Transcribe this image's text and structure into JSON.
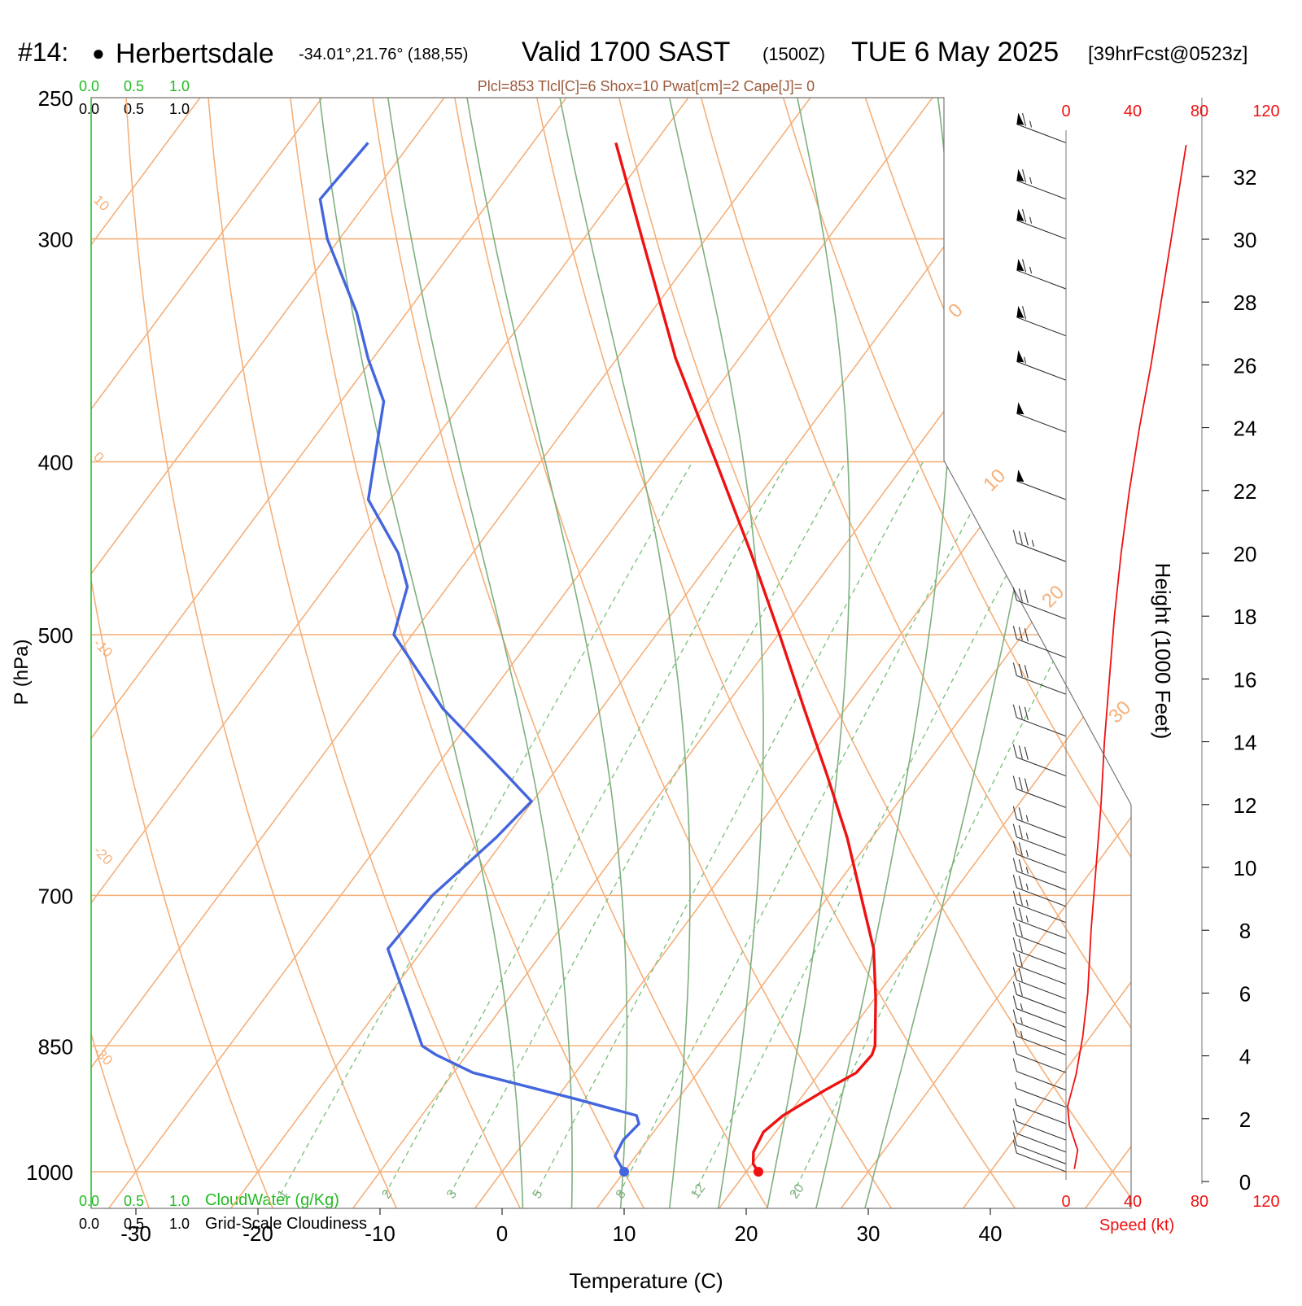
{
  "header": {
    "station_number": "#14:",
    "station_bullet": "●",
    "station_name": "Herbertsdale",
    "coords": "-34.01°,21.76° (188,55)",
    "valid": "Valid 1700 SAST",
    "zulu": "(1500Z)",
    "date": "TUE 6 May 2025",
    "forecast": "[39hrFcst@0523z]",
    "parcel_info": "Plcl=853 Tlcl[C]=6 Shox=10 Pwat[cm]=2 Cape[J]= 0"
  },
  "colors": {
    "temperature": "#ee1111",
    "dewpoint": "#4466dd",
    "isotherm_isobar": "#f5b07a",
    "moist_adiabat": "#7fb07f",
    "mixing_ratio": "#80c080",
    "cloudwater": "#22bb22",
    "speed": "#ee1111",
    "wind_barb": "#333333"
  },
  "chart_data": {
    "type": "line",
    "title": "Skew-T log-P sounding",
    "xlabel": "Temperature (C)",
    "ylabel": "P (hPa)",
    "y2label": "Height (1000 Feet)",
    "pressure_ticks": [
      250,
      300,
      400,
      500,
      700,
      850,
      1000
    ],
    "temperature_ticks": [
      -30,
      -20,
      -10,
      0,
      10,
      20,
      30,
      40
    ],
    "height_ticks_kft": [
      0,
      2,
      4,
      6,
      8,
      10,
      12,
      14,
      16,
      18,
      20,
      22,
      24,
      26,
      28,
      30,
      32
    ],
    "speed_ticks_kt": [
      0,
      40,
      80,
      120
    ],
    "speed_label": "Speed (kt)",
    "isotherm_labels": [
      "30",
      "20",
      "10",
      "0",
      "-10",
      "-20",
      "-30"
    ],
    "adiabat_labels": [
      "10",
      "0",
      "-10",
      "-20",
      "-30",
      "0",
      "10",
      "20",
      "30"
    ],
    "mixing_ratio_labels": [
      "1",
      "2",
      "3",
      "5",
      "8",
      "12",
      "20"
    ],
    "cloudwater_scale": {
      "labels": [
        "0.0",
        "0.5",
        "1.0"
      ],
      "name": "CloudWater (g/Kg)"
    },
    "cloudiness_scale": {
      "labels": [
        "0.0",
        "0.5",
        "1.0"
      ],
      "name": "Grid-Scale Cloudiness"
    },
    "series": [
      {
        "name": "Temperature",
        "points": [
          {
            "p": 1000,
            "t": 21.0
          },
          {
            "p": 990,
            "t": 20.1
          },
          {
            "p": 975,
            "t": 19.4
          },
          {
            "p": 950,
            "t": 19.0
          },
          {
            "p": 930,
            "t": 19.6
          },
          {
            "p": 900,
            "t": 21.5
          },
          {
            "p": 880,
            "t": 23.0
          },
          {
            "p": 860,
            "t": 23.2
          },
          {
            "p": 850,
            "t": 22.9
          },
          {
            "p": 800,
            "t": 20.1
          },
          {
            "p": 750,
            "t": 16.9
          },
          {
            "p": 700,
            "t": 12.6
          },
          {
            "p": 650,
            "t": 8.0
          },
          {
            "p": 600,
            "t": 2.6
          },
          {
            "p": 550,
            "t": -3.4
          },
          {
            "p": 500,
            "t": -9.9
          },
          {
            "p": 450,
            "t": -17.2
          },
          {
            "p": 400,
            "t": -25.6
          },
          {
            "p": 350,
            "t": -35.2
          },
          {
            "p": 300,
            "t": -45.2
          },
          {
            "p": 265,
            "t": -53.2
          }
        ]
      },
      {
        "name": "Dewpoint",
        "points": [
          {
            "p": 1000,
            "t": 10.0
          },
          {
            "p": 980,
            "t": 8.3
          },
          {
            "p": 960,
            "t": 8.0
          },
          {
            "p": 940,
            "t": 8.3
          },
          {
            "p": 930,
            "t": 7.6
          },
          {
            "p": 910,
            "t": 1.5
          },
          {
            "p": 880,
            "t": -8.4
          },
          {
            "p": 860,
            "t": -12.5
          },
          {
            "p": 850,
            "t": -14.2
          },
          {
            "p": 800,
            "t": -18.4
          },
          {
            "p": 750,
            "t": -22.9
          },
          {
            "p": 700,
            "t": -22.5
          },
          {
            "p": 650,
            "t": -20.8
          },
          {
            "p": 620,
            "t": -20.1
          },
          {
            "p": 600,
            "t": -23.6
          },
          {
            "p": 550,
            "t": -33.0
          },
          {
            "p": 500,
            "t": -41.5
          },
          {
            "p": 470,
            "t": -43.3
          },
          {
            "p": 450,
            "t": -46.1
          },
          {
            "p": 420,
            "t": -51.8
          },
          {
            "p": 370,
            "t": -56.5
          },
          {
            "p": 350,
            "t": -60.4
          },
          {
            "p": 330,
            "t": -64.1
          },
          {
            "p": 300,
            "t": -71.0
          },
          {
            "p": 285,
            "t": -74.0
          },
          {
            "p": 265,
            "t": -73.5
          }
        ]
      }
    ],
    "height_speed_profile": [
      {
        "kft": 0.4,
        "kt": 5
      },
      {
        "kft": 1.0,
        "kt": 7
      },
      {
        "kft": 1.8,
        "kt": 2
      },
      {
        "kft": 2.4,
        "kt": 1
      },
      {
        "kft": 3.4,
        "kt": 6
      },
      {
        "kft": 4.6,
        "kt": 10
      },
      {
        "kft": 6.0,
        "kt": 13
      },
      {
        "kft": 8.0,
        "kt": 15
      },
      {
        "kft": 10.0,
        "kt": 18
      },
      {
        "kft": 12.0,
        "kt": 21
      },
      {
        "kft": 14.0,
        "kt": 23
      },
      {
        "kft": 16.0,
        "kt": 26
      },
      {
        "kft": 18.0,
        "kt": 29
      },
      {
        "kft": 20.0,
        "kt": 33
      },
      {
        "kft": 22.0,
        "kt": 38
      },
      {
        "kft": 24.0,
        "kt": 44
      },
      {
        "kft": 26.0,
        "kt": 51
      },
      {
        "kft": 28.0,
        "kt": 57
      },
      {
        "kft": 30.0,
        "kt": 63
      },
      {
        "kft": 32.0,
        "kt": 69
      },
      {
        "kft": 33.0,
        "kt": 72
      }
    ],
    "wind_barbs": [
      {
        "p": 265,
        "kt": 65
      },
      {
        "p": 285,
        "kt": 65
      },
      {
        "p": 300,
        "kt": 65
      },
      {
        "p": 320,
        "kt": 65
      },
      {
        "p": 340,
        "kt": 60
      },
      {
        "p": 360,
        "kt": 55
      },
      {
        "p": 385,
        "kt": 50
      },
      {
        "p": 420,
        "kt": 50
      },
      {
        "p": 455,
        "kt": 35
      },
      {
        "p": 490,
        "kt": 30
      },
      {
        "p": 515,
        "kt": 30
      },
      {
        "p": 540,
        "kt": 30
      },
      {
        "p": 570,
        "kt": 30
      },
      {
        "p": 600,
        "kt": 30
      },
      {
        "p": 625,
        "kt": 30
      },
      {
        "p": 650,
        "kt": 25
      },
      {
        "p": 665,
        "kt": 25
      },
      {
        "p": 680,
        "kt": 25
      },
      {
        "p": 695,
        "kt": 25
      },
      {
        "p": 710,
        "kt": 25
      },
      {
        "p": 725,
        "kt": 25
      },
      {
        "p": 740,
        "kt": 25
      },
      {
        "p": 755,
        "kt": 20
      },
      {
        "p": 770,
        "kt": 20
      },
      {
        "p": 785,
        "kt": 20
      },
      {
        "p": 800,
        "kt": 20
      },
      {
        "p": 815,
        "kt": 20
      },
      {
        "p": 830,
        "kt": 15
      },
      {
        "p": 845,
        "kt": 15
      },
      {
        "p": 860,
        "kt": 15
      },
      {
        "p": 880,
        "kt": 10
      },
      {
        "p": 900,
        "kt": 10
      },
      {
        "p": 920,
        "kt": 5
      },
      {
        "p": 940,
        "kt": 5
      },
      {
        "p": 960,
        "kt": 10
      },
      {
        "p": 975,
        "kt": 10
      },
      {
        "p": 990,
        "kt": 10
      },
      {
        "p": 1000,
        "kt": 10
      }
    ]
  }
}
